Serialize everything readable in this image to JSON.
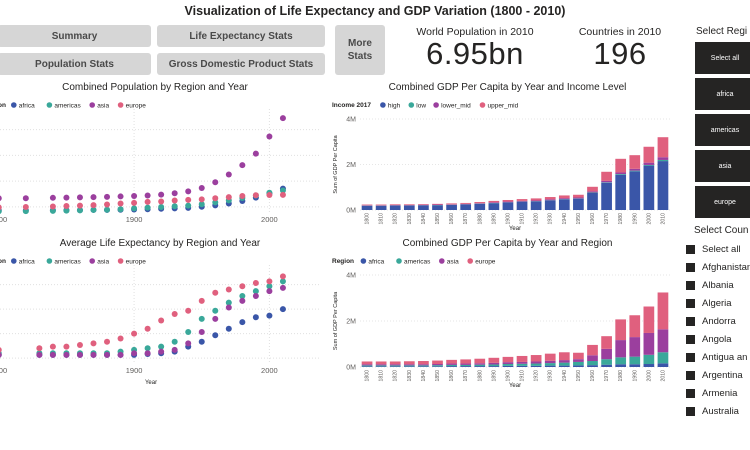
{
  "title": "Visualization of Life Expectancy and GDP Variation (1800 - 2010)",
  "nav": {
    "summary": "Summary",
    "life_expectancy": "Life Expectancy Stats",
    "population": "Population Stats",
    "gdp": "Gross Domestic Product Stats",
    "more": "More Stats"
  },
  "kpis": {
    "population_label": "World Population in 2010",
    "population_value": "6.95bn",
    "countries_label": "Countries in 2010",
    "countries_value": "196"
  },
  "colors": {
    "africa": "#3a56a8",
    "americas": "#3aa89a",
    "asia": "#9b3f9e",
    "europe": "#e0607e",
    "high": "#3a56a8",
    "low": "#3aa89a",
    "lower_mid": "#9b3f9e",
    "upper_mid": "#e0607e"
  },
  "chart_data": [
    {
      "id": "population",
      "type": "scatter",
      "title": "Combined Population by Region and Year",
      "legend_title": "on",
      "xlabel": "",
      "x_ticks": [
        "1800",
        "1900",
        "2000"
      ],
      "legend": [
        "africa",
        "americas",
        "asia",
        "europe"
      ],
      "xlim": [
        1795,
        2030
      ],
      "ylim": [
        0,
        4.5
      ],
      "series": [
        {
          "name": "africa",
          "x": [
            1800,
            1820,
            1840,
            1850,
            1860,
            1870,
            1880,
            1890,
            1900,
            1910,
            1920,
            1930,
            1940,
            1950,
            1960,
            1970,
            1980,
            1990,
            2000,
            2010
          ],
          "y": [
            0.07,
            0.07,
            0.08,
            0.08,
            0.08,
            0.09,
            0.09,
            0.1,
            0.11,
            0.12,
            0.14,
            0.16,
            0.18,
            0.23,
            0.29,
            0.37,
            0.48,
            0.63,
            0.81,
            1.02
          ]
        },
        {
          "name": "americas",
          "x": [
            1800,
            1820,
            1840,
            1850,
            1860,
            1870,
            1880,
            1890,
            1900,
            1910,
            1920,
            1930,
            1940,
            1950,
            1960,
            1970,
            1980,
            1990,
            2000,
            2010
          ],
          "y": [
            0.03,
            0.04,
            0.05,
            0.06,
            0.07,
            0.09,
            0.1,
            0.12,
            0.16,
            0.19,
            0.22,
            0.25,
            0.28,
            0.34,
            0.42,
            0.51,
            0.61,
            0.72,
            0.84,
            0.94
          ]
        },
        {
          "name": "asia",
          "x": [
            1800,
            1820,
            1840,
            1850,
            1860,
            1870,
            1880,
            1890,
            1900,
            1910,
            1920,
            1930,
            1940,
            1950,
            1960,
            1970,
            1980,
            1990,
            2000,
            2010
          ],
          "y": [
            0.6,
            0.6,
            0.62,
            0.63,
            0.64,
            0.65,
            0.66,
            0.68,
            0.7,
            0.72,
            0.76,
            0.82,
            0.9,
            1.05,
            1.3,
            1.64,
            2.05,
            2.55,
            3.3,
            4.1
          ]
        },
        {
          "name": "europe",
          "x": [
            1800,
            1820,
            1840,
            1850,
            1860,
            1870,
            1880,
            1890,
            1900,
            1910,
            1920,
            1930,
            1940,
            1950,
            1960,
            1970,
            1980,
            1990,
            2000,
            2010
          ],
          "y": [
            0.2,
            0.22,
            0.24,
            0.26,
            0.28,
            0.3,
            0.33,
            0.37,
            0.4,
            0.44,
            0.46,
            0.5,
            0.53,
            0.55,
            0.6,
            0.65,
            0.7,
            0.73,
            0.74,
            0.75
          ]
        }
      ]
    },
    {
      "id": "life",
      "type": "scatter",
      "title": "Average Life Expectancy by Region and Year",
      "legend_title": "on",
      "xlabel": "Year",
      "x_ticks": [
        "1800",
        "1900",
        "2000"
      ],
      "legend": [
        "africa",
        "americas",
        "asia",
        "europe"
      ],
      "xlim": [
        1795,
        2030
      ],
      "ylim": [
        25,
        85
      ],
      "series": [
        {
          "name": "africa",
          "x": [
            1800,
            1830,
            1840,
            1850,
            1860,
            1870,
            1880,
            1890,
            1900,
            1910,
            1920,
            1930,
            1940,
            1950,
            1960,
            1970,
            1980,
            1990,
            2000,
            2010
          ],
          "y": [
            30,
            30,
            30,
            30,
            30,
            30,
            30,
            30,
            30,
            30.5,
            31,
            32,
            35,
            38,
            42,
            46,
            50,
            53,
            54,
            58
          ]
        },
        {
          "name": "americas",
          "x": [
            1800,
            1830,
            1840,
            1850,
            1860,
            1870,
            1880,
            1890,
            1900,
            1910,
            1920,
            1930,
            1940,
            1950,
            1960,
            1970,
            1980,
            1990,
            2000,
            2010
          ],
          "y": [
            31,
            31,
            31,
            31,
            31,
            31,
            31,
            32,
            33,
            34,
            35,
            38,
            44,
            52,
            57,
            62,
            66,
            69,
            72,
            75
          ]
        },
        {
          "name": "asia",
          "x": [
            1800,
            1830,
            1840,
            1850,
            1860,
            1870,
            1880,
            1890,
            1900,
            1910,
            1920,
            1930,
            1940,
            1950,
            1960,
            1970,
            1980,
            1990,
            2000,
            2010
          ],
          "y": [
            30,
            30,
            30,
            30,
            30,
            30,
            30,
            30,
            31,
            31,
            32,
            33,
            37,
            44,
            52,
            59,
            63,
            66,
            69,
            71
          ]
        },
        {
          "name": "europe",
          "x": [
            1800,
            1830,
            1840,
            1850,
            1860,
            1870,
            1880,
            1890,
            1900,
            1910,
            1920,
            1930,
            1940,
            1950,
            1960,
            1970,
            1980,
            1990,
            2000,
            2010
          ],
          "y": [
            33,
            34,
            35,
            35,
            36,
            37,
            38,
            40,
            43,
            46,
            51,
            55,
            57,
            63,
            68,
            70,
            72,
            74,
            75,
            78
          ]
        }
      ]
    },
    {
      "id": "gdp_income",
      "type": "bar",
      "stacked": true,
      "title": "Combined GDP Per Capita by Year and Income Level",
      "legend_title": "Income 2017",
      "xlabel": "Year",
      "ylabel": "Sum of GDP Per Capita",
      "y_ticks": [
        "0M",
        "2M",
        "4M"
      ],
      "ylim": [
        0,
        4
      ],
      "categories": [
        "1800",
        "1810",
        "1820",
        "1830",
        "1840",
        "1850",
        "1860",
        "1870",
        "1880",
        "1890",
        "1900",
        "1910",
        "1920",
        "1930",
        "1940",
        "1950",
        "1960",
        "1970",
        "1980",
        "1990",
        "2000",
        "2010"
      ],
      "legend": [
        "high",
        "low",
        "lower_mid",
        "upper_mid"
      ],
      "series": [
        {
          "name": "high",
          "values": [
            0.18,
            0.18,
            0.19,
            0.19,
            0.2,
            0.21,
            0.22,
            0.24,
            0.27,
            0.3,
            0.33,
            0.36,
            0.38,
            0.42,
            0.47,
            0.5,
            0.75,
            1.2,
            1.55,
            1.7,
            1.95,
            2.15
          ]
        },
        {
          "name": "low",
          "values": [
            0.01,
            0.01,
            0.01,
            0.01,
            0.01,
            0.01,
            0.01,
            0.01,
            0.01,
            0.01,
            0.01,
            0.01,
            0.01,
            0.01,
            0.01,
            0.01,
            0.02,
            0.02,
            0.03,
            0.03,
            0.03,
            0.05
          ]
        },
        {
          "name": "lower_mid",
          "values": [
            0.02,
            0.02,
            0.02,
            0.02,
            0.02,
            0.02,
            0.02,
            0.02,
            0.02,
            0.03,
            0.03,
            0.03,
            0.03,
            0.04,
            0.04,
            0.04,
            0.05,
            0.06,
            0.07,
            0.08,
            0.1,
            0.12
          ]
        },
        {
          "name": "upper_mid",
          "values": [
            0.03,
            0.03,
            0.03,
            0.03,
            0.03,
            0.03,
            0.04,
            0.04,
            0.05,
            0.06,
            0.07,
            0.08,
            0.09,
            0.1,
            0.12,
            0.12,
            0.2,
            0.4,
            0.6,
            0.6,
            0.7,
            0.88
          ]
        }
      ]
    },
    {
      "id": "gdp_region",
      "type": "bar",
      "stacked": true,
      "title": "Combined GDP Per Capita by Year and Region",
      "legend_title": "Region",
      "xlabel": "Year",
      "ylabel": "Sum of GDP Per Capita",
      "y_ticks": [
        "0M",
        "2M",
        "4M"
      ],
      "ylim": [
        0,
        4
      ],
      "categories": [
        "1800",
        "1810",
        "1820",
        "1830",
        "1840",
        "1850",
        "1860",
        "1870",
        "1880",
        "1890",
        "1900",
        "1910",
        "1920",
        "1930",
        "1940",
        "1950",
        "1960",
        "1970",
        "1980",
        "1990",
        "2000",
        "2010"
      ],
      "legend": [
        "africa",
        "americas",
        "asia",
        "europe"
      ],
      "series": [
        {
          "name": "africa",
          "values": [
            0.03,
            0.03,
            0.03,
            0.03,
            0.03,
            0.03,
            0.04,
            0.04,
            0.04,
            0.04,
            0.05,
            0.05,
            0.05,
            0.06,
            0.06,
            0.07,
            0.08,
            0.1,
            0.12,
            0.12,
            0.13,
            0.16
          ]
        },
        {
          "name": "americas",
          "values": [
            0.04,
            0.04,
            0.04,
            0.04,
            0.04,
            0.05,
            0.05,
            0.05,
            0.06,
            0.07,
            0.08,
            0.09,
            0.1,
            0.11,
            0.13,
            0.15,
            0.18,
            0.24,
            0.3,
            0.33,
            0.4,
            0.48
          ]
        },
        {
          "name": "asia",
          "values": [
            0.05,
            0.05,
            0.05,
            0.05,
            0.05,
            0.05,
            0.06,
            0.06,
            0.06,
            0.07,
            0.08,
            0.08,
            0.09,
            0.1,
            0.11,
            0.12,
            0.25,
            0.45,
            0.75,
            0.85,
            0.95,
            1.0
          ]
        },
        {
          "name": "europe",
          "values": [
            0.12,
            0.12,
            0.12,
            0.13,
            0.14,
            0.15,
            0.16,
            0.18,
            0.2,
            0.22,
            0.23,
            0.26,
            0.28,
            0.31,
            0.34,
            0.28,
            0.45,
            0.55,
            0.9,
            0.95,
            1.15,
            1.6
          ]
        }
      ]
    }
  ],
  "region_slicer": {
    "title": "Select Regi",
    "items": [
      "Select all",
      "africa",
      "americas",
      "asia",
      "europe"
    ]
  },
  "country_slicer": {
    "title": "Select Coun",
    "items": [
      "Select all",
      "Afghanistan",
      "Albania",
      "Algeria",
      "Andorra",
      "Angola",
      "Antigua an",
      "Argentina",
      "Armenia",
      "Australia"
    ]
  }
}
